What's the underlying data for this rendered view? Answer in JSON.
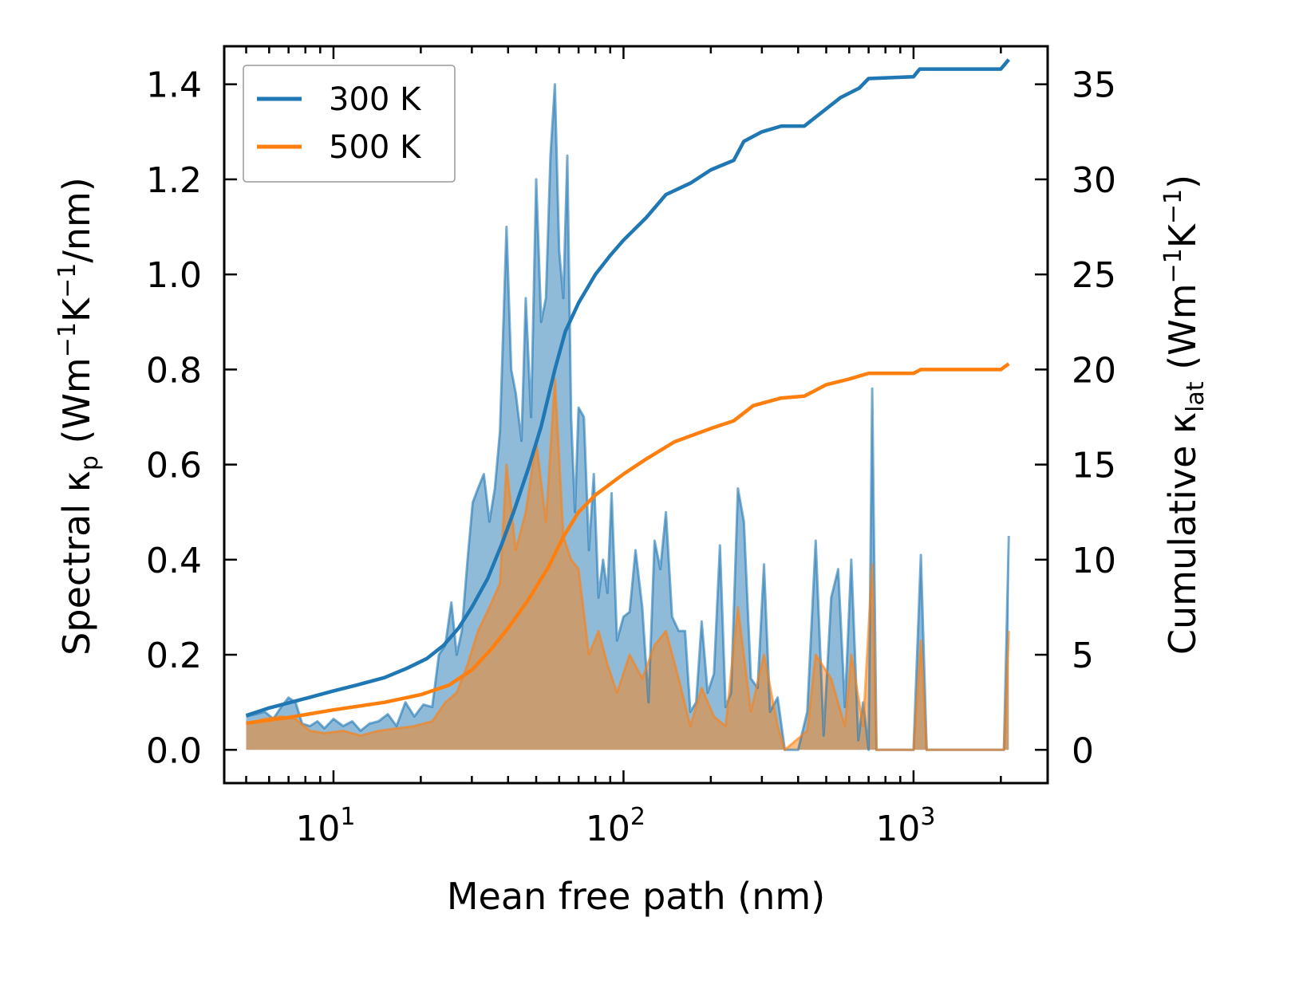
{
  "chart_data": {
    "type": "line",
    "xscale": "log",
    "xlabel": "Mean free path (nm)",
    "ylabel_left": {
      "pre": "Spectral κ",
      "sub": "p",
      "post": " (Wm",
      "sup1": "−1",
      "mid": "K",
      "sup2": "−1",
      "end": "/nm)"
    },
    "ylabel_right": {
      "pre": "Cumulative κ",
      "sub": "lat",
      "post": " (Wm",
      "sup1": "−1",
      "mid": "K",
      "sup2": "−1",
      "end": ")"
    },
    "xlim": [
      4.2,
      2900
    ],
    "ylim_left": [
      -0.07,
      1.48
    ],
    "ylim_right": [
      -1.75,
      37.0
    ],
    "x_major_ticks": [
      {
        "value": 10,
        "base": "10",
        "exp": "1"
      },
      {
        "value": 100,
        "base": "10",
        "exp": "2"
      },
      {
        "value": 1000,
        "base": "10",
        "exp": "3"
      }
    ],
    "y_left_ticks": [
      {
        "value": 0.0,
        "label": "0.0"
      },
      {
        "value": 0.2,
        "label": "0.2"
      },
      {
        "value": 0.4,
        "label": "0.4"
      },
      {
        "value": 0.6,
        "label": "0.6"
      },
      {
        "value": 0.8,
        "label": "0.8"
      },
      {
        "value": 1.0,
        "label": "1.0"
      },
      {
        "value": 1.2,
        "label": "1.2"
      },
      {
        "value": 1.4,
        "label": "1.4"
      }
    ],
    "y_right_ticks": [
      {
        "value": 0,
        "label": "0"
      },
      {
        "value": 5,
        "label": "5"
      },
      {
        "value": 10,
        "label": "10"
      },
      {
        "value": 15,
        "label": "15"
      },
      {
        "value": 20,
        "label": "20"
      },
      {
        "value": 25,
        "label": "25"
      },
      {
        "value": 30,
        "label": "30"
      },
      {
        "value": 35,
        "label": "35"
      }
    ],
    "legend": {
      "position": "top-left",
      "entries": [
        "300 K",
        "500 K"
      ]
    },
    "series": [
      {
        "name": "300 K",
        "color": "#1f77b4",
        "fill_color": "#1f77b4",
        "spectral": [
          [
            5.0,
            0.07
          ],
          [
            5.4,
            0.075
          ],
          [
            5.8,
            0.08
          ],
          [
            6.2,
            0.065
          ],
          [
            6.6,
            0.09
          ],
          [
            7.0,
            0.11
          ],
          [
            7.4,
            0.1
          ],
          [
            7.8,
            0.055
          ],
          [
            8.3,
            0.05
          ],
          [
            8.8,
            0.06
          ],
          [
            9.3,
            0.045
          ],
          [
            10.0,
            0.065
          ],
          [
            10.8,
            0.05
          ],
          [
            11.6,
            0.06
          ],
          [
            12.4,
            0.04
          ],
          [
            13.3,
            0.055
          ],
          [
            14.3,
            0.06
          ],
          [
            15.4,
            0.075
          ],
          [
            16.5,
            0.05
          ],
          [
            17.7,
            0.1
          ],
          [
            19.0,
            0.07
          ],
          [
            20.4,
            0.095
          ],
          [
            21.9,
            0.09
          ],
          [
            23.1,
            0.2
          ],
          [
            24.3,
            0.22
          ],
          [
            25.5,
            0.31
          ],
          [
            26.6,
            0.2
          ],
          [
            27.7,
            0.25
          ],
          [
            29.0,
            0.4
          ],
          [
            30.2,
            0.52
          ],
          [
            31.5,
            0.55
          ],
          [
            33.0,
            0.58
          ],
          [
            34.5,
            0.48
          ],
          [
            36.0,
            0.55
          ],
          [
            37.5,
            0.67
          ],
          [
            39.5,
            1.1
          ],
          [
            41.0,
            0.8
          ],
          [
            42.5,
            0.75
          ],
          [
            44.5,
            0.65
          ],
          [
            46.0,
            0.95
          ],
          [
            48.0,
            0.7
          ],
          [
            50.0,
            1.2
          ],
          [
            52.0,
            0.9
          ],
          [
            54.0,
            0.95
          ],
          [
            56.0,
            1.25
          ],
          [
            58.0,
            1.4
          ],
          [
            60.0,
            1.05
          ],
          [
            62.0,
            0.95
          ],
          [
            64.0,
            1.25
          ],
          [
            66.0,
            0.7
          ],
          [
            68.0,
            0.5
          ],
          [
            70.0,
            0.72
          ],
          [
            73.0,
            0.7
          ],
          [
            76.0,
            0.42
          ],
          [
            79.0,
            0.58
          ],
          [
            82.0,
            0.32
          ],
          [
            85.0,
            0.4
          ],
          [
            88.0,
            0.33
          ],
          [
            91.0,
            0.54
          ],
          [
            95.0,
            0.23
          ],
          [
            100.0,
            0.28
          ],
          [
            105.0,
            0.29
          ],
          [
            110.0,
            0.42
          ],
          [
            116.0,
            0.3
          ],
          [
            122.0,
            0.1
          ],
          [
            128.0,
            0.44
          ],
          [
            134.0,
            0.38
          ],
          [
            140.0,
            0.5
          ],
          [
            147.0,
            0.28
          ],
          [
            155.0,
            0.25
          ],
          [
            163.0,
            0.25
          ],
          [
            170.0,
            0.08
          ],
          [
            178.0,
            0.1
          ],
          [
            186.0,
            0.27
          ],
          [
            195.0,
            0.12
          ],
          [
            205.0,
            0.16
          ],
          [
            215.0,
            0.43
          ],
          [
            225.0,
            0.09
          ],
          [
            235.0,
            0.12
          ],
          [
            248.0,
            0.55
          ],
          [
            260.0,
            0.48
          ],
          [
            275.0,
            0.15
          ],
          [
            290.0,
            0.13
          ],
          [
            305.0,
            0.39
          ],
          [
            320.0,
            0.08
          ],
          [
            340.0,
            0.11
          ],
          [
            360.0,
            0.0
          ],
          [
            400.0,
            0.0
          ],
          [
            430.0,
            0.08
          ],
          [
            460.0,
            0.44
          ],
          [
            490.0,
            0.03
          ],
          [
            520.0,
            0.32
          ],
          [
            550.0,
            0.38
          ],
          [
            580.0,
            0.09
          ],
          [
            610.0,
            0.4
          ],
          [
            645.0,
            0.02
          ],
          [
            670.0,
            0.1
          ],
          [
            700.0,
            0.0
          ],
          [
            720.0,
            0.76
          ],
          [
            745.0,
            0.0
          ],
          [
            1000.0,
            0.0
          ],
          [
            1060.0,
            0.41
          ],
          [
            1110.0,
            0.0
          ],
          [
            2050.0,
            0.0
          ],
          [
            2130.0,
            0.45
          ]
        ],
        "cumulative": [
          [
            5.0,
            1.8
          ],
          [
            6.0,
            2.2
          ],
          [
            8.0,
            2.7
          ],
          [
            10.0,
            3.1
          ],
          [
            12.0,
            3.4
          ],
          [
            15.0,
            3.8
          ],
          [
            18.0,
            4.3
          ],
          [
            21.0,
            4.8
          ],
          [
            24.0,
            5.5
          ],
          [
            27.0,
            6.4
          ],
          [
            30.0,
            7.5
          ],
          [
            34.0,
            9.0
          ],
          [
            38.0,
            10.8
          ],
          [
            42.0,
            12.6
          ],
          [
            47.0,
            14.8
          ],
          [
            52.0,
            17.0
          ],
          [
            58.0,
            20.0
          ],
          [
            63.0,
            22.0
          ],
          [
            70.0,
            23.5
          ],
          [
            80.0,
            25.0
          ],
          [
            90.0,
            26.0
          ],
          [
            100.0,
            26.8
          ],
          [
            120.0,
            28.0
          ],
          [
            140.0,
            29.2
          ],
          [
            170.0,
            29.8
          ],
          [
            200.0,
            30.5
          ],
          [
            240.0,
            31.0
          ],
          [
            260.0,
            32.0
          ],
          [
            300.0,
            32.5
          ],
          [
            350.0,
            32.8
          ],
          [
            420.0,
            32.8
          ],
          [
            480.0,
            33.5
          ],
          [
            560.0,
            34.3
          ],
          [
            650.0,
            34.8
          ],
          [
            700.0,
            35.3
          ],
          [
            1000.0,
            35.4
          ],
          [
            1050.0,
            35.8
          ],
          [
            2000.0,
            35.8
          ],
          [
            2130.0,
            36.3
          ]
        ]
      },
      {
        "name": "500 K",
        "color": "#ff7f0e",
        "fill_color": "#ff7f0e",
        "spectral": [
          [
            5.0,
            0.055
          ],
          [
            5.8,
            0.065
          ],
          [
            6.6,
            0.07
          ],
          [
            7.4,
            0.065
          ],
          [
            8.3,
            0.04
          ],
          [
            9.3,
            0.035
          ],
          [
            10.8,
            0.04
          ],
          [
            12.4,
            0.03
          ],
          [
            14.3,
            0.04
          ],
          [
            16.5,
            0.045
          ],
          [
            19.0,
            0.05
          ],
          [
            21.9,
            0.06
          ],
          [
            24.3,
            0.1
          ],
          [
            26.6,
            0.12
          ],
          [
            29.0,
            0.18
          ],
          [
            31.5,
            0.25
          ],
          [
            34.5,
            0.3
          ],
          [
            37.5,
            0.35
          ],
          [
            39.5,
            0.6
          ],
          [
            42.5,
            0.42
          ],
          [
            46.0,
            0.5
          ],
          [
            50.0,
            0.65
          ],
          [
            54.0,
            0.48
          ],
          [
            58.0,
            0.78
          ],
          [
            62.0,
            0.45
          ],
          [
            66.0,
            0.4
          ],
          [
            70.0,
            0.38
          ],
          [
            76.0,
            0.2
          ],
          [
            82.0,
            0.25
          ],
          [
            88.0,
            0.18
          ],
          [
            95.0,
            0.12
          ],
          [
            105.0,
            0.2
          ],
          [
            116.0,
            0.15
          ],
          [
            128.0,
            0.22
          ],
          [
            140.0,
            0.25
          ],
          [
            155.0,
            0.15
          ],
          [
            170.0,
            0.05
          ],
          [
            186.0,
            0.13
          ],
          [
            205.0,
            0.07
          ],
          [
            225.0,
            0.05
          ],
          [
            248.0,
            0.3
          ],
          [
            275.0,
            0.08
          ],
          [
            305.0,
            0.2
          ],
          [
            340.0,
            0.05
          ],
          [
            360.0,
            0.0
          ],
          [
            430.0,
            0.04
          ],
          [
            460.0,
            0.2
          ],
          [
            520.0,
            0.15
          ],
          [
            580.0,
            0.05
          ],
          [
            610.0,
            0.2
          ],
          [
            670.0,
            0.05
          ],
          [
            720.0,
            0.39
          ],
          [
            745.0,
            0.0
          ],
          [
            1000.0,
            0.0
          ],
          [
            1060.0,
            0.23
          ],
          [
            1110.0,
            0.0
          ],
          [
            2050.0,
            0.0
          ],
          [
            2130.0,
            0.25
          ]
        ],
        "cumulative": [
          [
            5.0,
            1.4
          ],
          [
            7.0,
            1.7
          ],
          [
            10.0,
            2.1
          ],
          [
            15.0,
            2.5
          ],
          [
            20.0,
            2.9
          ],
          [
            25.0,
            3.4
          ],
          [
            30.0,
            4.2
          ],
          [
            35.0,
            5.3
          ],
          [
            40.0,
            6.4
          ],
          [
            47.0,
            7.9
          ],
          [
            55.0,
            9.6
          ],
          [
            62.0,
            11.2
          ],
          [
            70.0,
            12.5
          ],
          [
            80.0,
            13.4
          ],
          [
            100.0,
            14.5
          ],
          [
            120.0,
            15.3
          ],
          [
            150.0,
            16.2
          ],
          [
            200.0,
            16.9
          ],
          [
            240.0,
            17.3
          ],
          [
            280.0,
            18.1
          ],
          [
            350.0,
            18.5
          ],
          [
            420.0,
            18.6
          ],
          [
            500.0,
            19.2
          ],
          [
            600.0,
            19.5
          ],
          [
            700.0,
            19.8
          ],
          [
            1000.0,
            19.8
          ],
          [
            1060.0,
            20.0
          ],
          [
            2000.0,
            20.0
          ],
          [
            2130.0,
            20.3
          ]
        ]
      }
    ]
  }
}
